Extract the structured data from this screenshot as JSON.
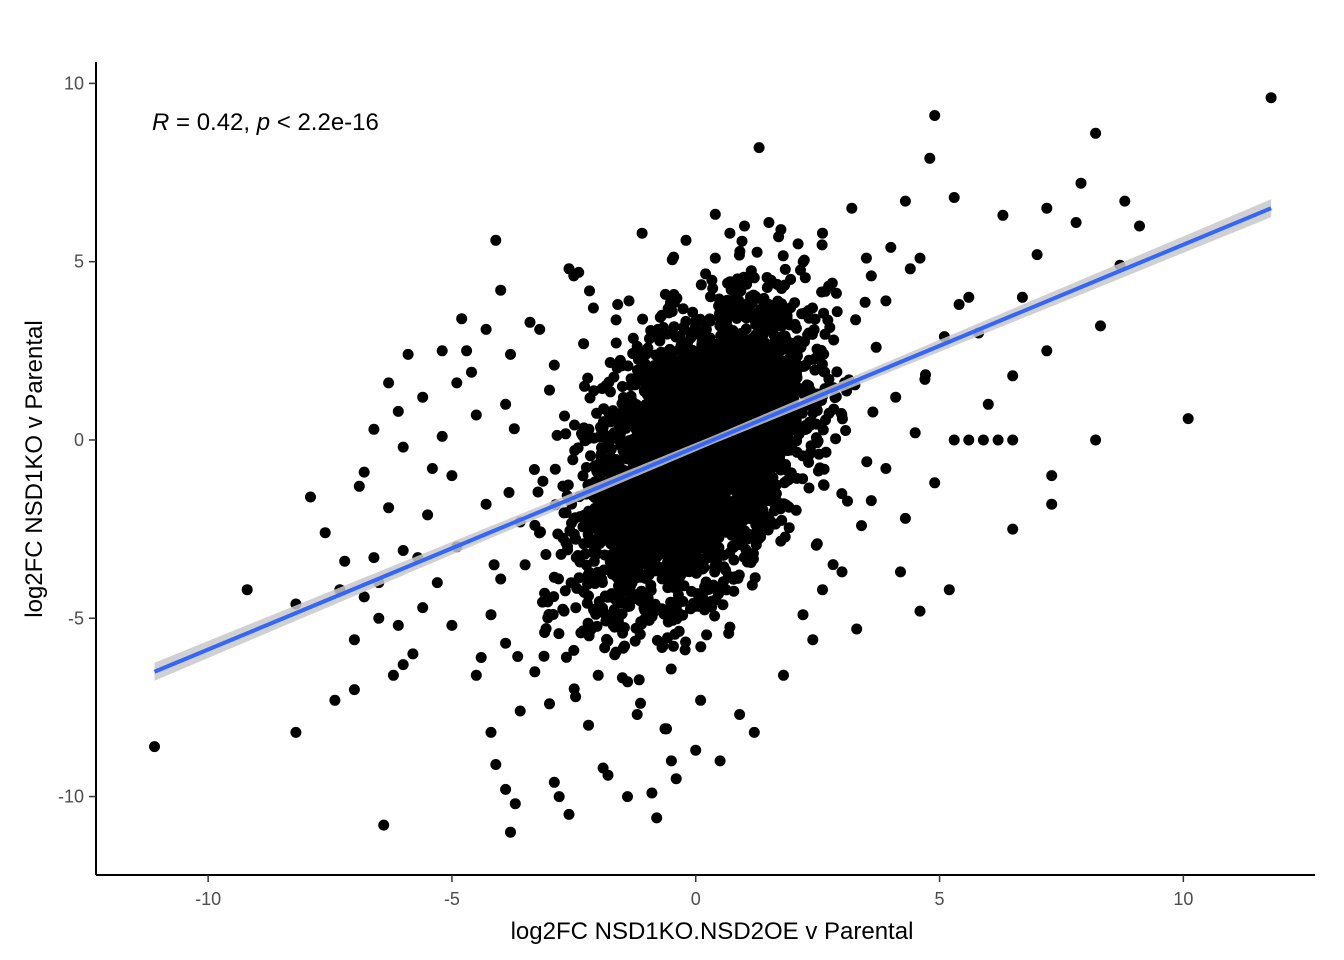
{
  "chart_data": {
    "type": "scatter",
    "title": "",
    "xlabel": "log2FC NSD1KO.NSD2OE v Parental",
    "ylabel": "log2FC NSD1KO v Parental",
    "xlim": [
      -12.3,
      12.7
    ],
    "ylim": [
      -12.2,
      10.6
    ],
    "x_ticks": [
      -10,
      -5,
      0,
      5,
      10
    ],
    "y_ticks": [
      -10,
      -5,
      0,
      5,
      10
    ],
    "x_tick_labels": [
      "-10",
      "-5",
      "0",
      "5",
      "10"
    ],
    "y_tick_labels": [
      "-10",
      "-5",
      "0",
      "5",
      "10"
    ],
    "grid": false,
    "annotation": {
      "r_symbol": "R",
      "r_text": " = 0.42, ",
      "p_symbol": "p",
      "p_text": " < 2.2e-16"
    },
    "regression": {
      "x": [
        -11.1,
        11.8
      ],
      "y": [
        -6.5,
        6.5
      ],
      "color": "#3366ff",
      "band_color": "#c8c8c8"
    },
    "point_color": "#000000",
    "core_cloud": {
      "description_free": true,
      "center": [
        0.0,
        -0.4
      ],
      "spread": [
        1.1,
        2.0
      ],
      "correlation": 0.45,
      "count": 4200
    },
    "points": [
      [
        -11.1,
        -8.6
      ],
      [
        -9.2,
        -4.2
      ],
      [
        -8.2,
        -4.6
      ],
      [
        -8.2,
        -8.2
      ],
      [
        -7.9,
        -1.6
      ],
      [
        -7.6,
        -2.6
      ],
      [
        -7.4,
        -7.3
      ],
      [
        -7.2,
        -3.4
      ],
      [
        -7.0,
        -7.0
      ],
      [
        -6.9,
        -1.3
      ],
      [
        -6.8,
        -4.4
      ],
      [
        -6.6,
        -3.3
      ],
      [
        -6.5,
        -5.0
      ],
      [
        -6.4,
        -10.8
      ],
      [
        -6.2,
        -6.6
      ],
      [
        -6.0,
        -6.3
      ],
      [
        -5.8,
        -6.0
      ],
      [
        -6.3,
        1.6
      ],
      [
        -6.0,
        -0.2
      ],
      [
        -6.1,
        0.8
      ],
      [
        -5.6,
        1.2
      ],
      [
        -5.4,
        -0.8
      ],
      [
        -5.2,
        0.1
      ],
      [
        -5.0,
        -1.0
      ],
      [
        -4.9,
        1.6
      ],
      [
        -4.7,
        2.5
      ],
      [
        -4.8,
        3.4
      ],
      [
        -4.5,
        0.7
      ],
      [
        -4.3,
        -1.8
      ],
      [
        -4.2,
        -4.9
      ],
      [
        -4.2,
        -8.2
      ],
      [
        -4.1,
        -9.1
      ],
      [
        -3.9,
        -9.8
      ],
      [
        -3.8,
        -11.0
      ],
      [
        -3.7,
        -10.2
      ],
      [
        -4.0,
        4.2
      ],
      [
        -4.1,
        5.6
      ],
      [
        -3.9,
        1.0
      ],
      [
        -3.6,
        -2.3
      ],
      [
        -3.5,
        -3.5
      ],
      [
        -3.8,
        2.4
      ],
      [
        -3.2,
        3.1
      ],
      [
        -3.3,
        -6.5
      ],
      [
        -3.1,
        -5.4
      ],
      [
        -2.9,
        2.1
      ],
      [
        -2.9,
        -9.6
      ],
      [
        -2.8,
        -10.0
      ],
      [
        -2.6,
        -10.5
      ],
      [
        -2.5,
        4.6
      ],
      [
        -2.4,
        4.7
      ],
      [
        -2.7,
        -4.8
      ],
      [
        -2.6,
        4.8
      ],
      [
        -2.2,
        -8.0
      ],
      [
        -2.1,
        3.7
      ],
      [
        -1.9,
        -9.2
      ],
      [
        -1.8,
        -9.4
      ],
      [
        -1.6,
        3.8
      ],
      [
        -1.4,
        -10.0
      ],
      [
        -1.1,
        5.8
      ],
      [
        -0.9,
        -9.9
      ],
      [
        -0.8,
        -10.6
      ],
      [
        -0.5,
        -9.0
      ],
      [
        -0.4,
        -9.5
      ],
      [
        -0.2,
        5.6
      ],
      [
        0.0,
        -8.7
      ],
      [
        0.4,
        5.1
      ],
      [
        0.5,
        -9.0
      ],
      [
        0.7,
        5.8
      ],
      [
        1.0,
        6.0
      ],
      [
        1.2,
        -8.2
      ],
      [
        1.3,
        8.2
      ],
      [
        1.5,
        6.1
      ],
      [
        1.7,
        5.7
      ],
      [
        2.1,
        5.5
      ],
      [
        2.6,
        5.8
      ],
      [
        3.2,
        6.5
      ],
      [
        3.5,
        5.1
      ],
      [
        4.0,
        5.4
      ],
      [
        4.3,
        6.7
      ],
      [
        4.6,
        5.1
      ],
      [
        4.8,
        7.9
      ],
      [
        4.9,
        9.1
      ],
      [
        5.3,
        6.8
      ],
      [
        5.6,
        4.0
      ],
      [
        5.8,
        3.0
      ],
      [
        6.0,
        1.0
      ],
      [
        6.3,
        6.3
      ],
      [
        6.5,
        1.8
      ],
      [
        6.7,
        4.0
      ],
      [
        7.0,
        5.2
      ],
      [
        7.2,
        6.5
      ],
      [
        7.2,
        2.5
      ],
      [
        7.3,
        -1.0
      ],
      [
        7.3,
        -1.8
      ],
      [
        7.8,
        6.1
      ],
      [
        7.9,
        7.2
      ],
      [
        8.2,
        8.6
      ],
      [
        8.3,
        3.2
      ],
      [
        8.2,
        0.0
      ],
      [
        8.7,
        4.9
      ],
      [
        8.8,
        6.7
      ],
      [
        9.1,
        6.0
      ],
      [
        10.1,
        0.6
      ],
      [
        11.8,
        9.6
      ],
      [
        6.5,
        -2.5
      ],
      [
        5.2,
        -4.2
      ],
      [
        4.6,
        -4.8
      ],
      [
        4.2,
        -3.7
      ],
      [
        3.3,
        -5.3
      ],
      [
        5.3,
        0.0
      ],
      [
        5.6,
        0.0
      ],
      [
        5.9,
        0.0
      ],
      [
        6.2,
        0.0
      ],
      [
        6.5,
        0.0
      ],
      [
        4.7,
        1.7
      ],
      [
        4.9,
        -1.2
      ],
      [
        5.1,
        2.9
      ],
      [
        5.4,
        3.8
      ],
      [
        2.2,
        -4.9
      ],
      [
        2.4,
        -5.6
      ],
      [
        1.8,
        -6.6
      ],
      [
        0.9,
        -7.7
      ],
      [
        0.1,
        -7.3
      ],
      [
        -0.6,
        -8.1
      ],
      [
        -1.2,
        -7.7
      ],
      [
        -2.0,
        -6.6
      ],
      [
        -3.0,
        -7.4
      ],
      [
        -3.6,
        -7.6
      ],
      [
        -4.5,
        -6.6
      ],
      [
        -5.0,
        -5.2
      ],
      [
        -5.3,
        -4.0
      ],
      [
        -5.7,
        -3.3
      ],
      [
        -5.5,
        -2.1
      ],
      [
        -6.3,
        -1.9
      ],
      [
        -6.6,
        0.3
      ],
      [
        -6.8,
        -0.9
      ],
      [
        -5.9,
        2.4
      ],
      [
        -5.2,
        2.5
      ],
      [
        -4.3,
        3.1
      ],
      [
        -3.4,
        3.3
      ],
      [
        -2.3,
        2.7
      ],
      [
        -3.0,
        1.4
      ],
      [
        -4.6,
        1.9
      ],
      [
        -4.9,
        -3.0
      ],
      [
        -4.0,
        -3.9
      ],
      [
        -3.1,
        -4.3
      ],
      [
        -2.5,
        -5.9
      ],
      [
        -3.9,
        -5.7
      ],
      [
        -4.4,
        -6.1
      ],
      [
        -5.6,
        -4.7
      ],
      [
        -6.1,
        -5.2
      ],
      [
        -7.0,
        -5.6
      ],
      [
        -6.5,
        -4.0
      ],
      [
        -6.0,
        -3.1
      ],
      [
        -7.3,
        -4.2
      ],
      [
        1.5,
        3.8
      ],
      [
        2.8,
        4.4
      ],
      [
        3.6,
        4.6
      ],
      [
        2.9,
        3.6
      ],
      [
        3.9,
        3.9
      ],
      [
        4.4,
        4.8
      ],
      [
        3.7,
        2.6
      ],
      [
        4.1,
        1.2
      ],
      [
        4.5,
        0.2
      ],
      [
        3.9,
        -0.8
      ],
      [
        3.4,
        -2.4
      ],
      [
        3.0,
        -3.7
      ],
      [
        2.6,
        -4.2
      ],
      [
        3.6,
        -1.7
      ],
      [
        4.3,
        -2.2
      ]
    ]
  }
}
